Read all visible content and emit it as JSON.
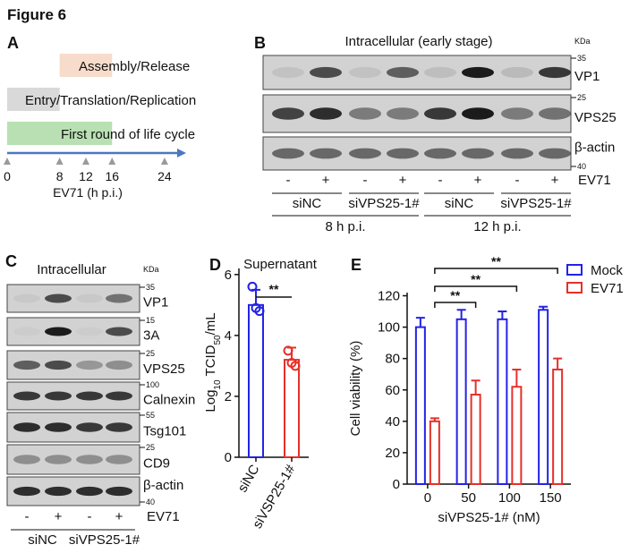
{
  "figure_title": "Figure 6",
  "panel_a": {
    "label": "A",
    "phases": [
      {
        "text": "Assembly/Release",
        "start": 8,
        "end": 16,
        "color": "#f8dccb"
      },
      {
        "text": "Entry/Translation/Replication",
        "start": 0,
        "end": 8,
        "color": "#d9d9d9"
      },
      {
        "text": "First round of life cycle",
        "start": 0,
        "end": 16,
        "color": "#b9e0b2"
      }
    ],
    "ticks": [
      0,
      8,
      12,
      16,
      24
    ],
    "axis_label": "EV71 (h p.i.)"
  },
  "panel_b": {
    "label": "B",
    "title": "Intracellular (early stage)",
    "unit": "KDa",
    "rows": [
      {
        "name": "VP1",
        "marker": "35"
      },
      {
        "name": "VPS25",
        "marker": "25"
      },
      {
        "name": "β-actin",
        "marker": "40"
      }
    ],
    "lanes": [
      "-",
      "+",
      "-",
      "+",
      "-",
      "+",
      "-",
      "+"
    ],
    "treatment": "EV71",
    "groups": [
      "siNC",
      "siVPS25-1#",
      "siNC",
      "siVPS25-1#"
    ],
    "times": [
      "8 h p.i.",
      "12 h p.i."
    ]
  },
  "panel_c": {
    "label": "C",
    "title": "Intracellular",
    "unit": "KDa",
    "rows": [
      {
        "name": "VP1",
        "marker": "35"
      },
      {
        "name": "3A",
        "marker": "15"
      },
      {
        "name": "VPS25",
        "marker": "25"
      },
      {
        "name": "Calnexin",
        "marker": "100"
      },
      {
        "name": "Tsg101",
        "marker": "55"
      },
      {
        "name": "CD9",
        "marker": "25"
      },
      {
        "name": "β-actin",
        "marker": "40"
      }
    ],
    "lanes": [
      "-",
      "+",
      "-",
      "+"
    ],
    "treatment": "EV71",
    "groups": [
      "siNC",
      "siVPS25-1#"
    ]
  },
  "chart_data": [
    {
      "panel": "D",
      "type": "bar",
      "title": "Supernatant",
      "y_label": [
        "Log",
        "10",
        " TCID",
        "50",
        "/mL"
      ],
      "categories": [
        "siNC",
        "siVSP25-1#"
      ],
      "colors": [
        "#2323e6",
        "#e6302a"
      ],
      "values": [
        5.0,
        3.2
      ],
      "errors": [
        0.5,
        0.4
      ],
      "points": [
        [
          5.6,
          4.9,
          4.8
        ],
        [
          3.5,
          3.1,
          3.0
        ]
      ],
      "ylim": [
        0,
        6.2
      ],
      "yticks": [
        0,
        2,
        4,
        6
      ],
      "significance": "**"
    },
    {
      "panel": "E",
      "type": "grouped_bar",
      "y_label": "Cell viability (%)",
      "x_label": "siVPS25-1# (nM)",
      "categories": [
        "0",
        "50",
        "100",
        "150"
      ],
      "series": [
        {
          "name": "Mock",
          "color": "#2323e6",
          "values": [
            100,
            105,
            105,
            111
          ],
          "errors": [
            6,
            6,
            5,
            2
          ]
        },
        {
          "name": "EV71",
          "color": "#e6302a",
          "values": [
            40,
            57,
            62,
            73
          ],
          "errors": [
            2,
            9,
            11,
            7
          ]
        }
      ],
      "ylim": [
        0,
        122
      ],
      "yticks": [
        0,
        20,
        40,
        60,
        80,
        100,
        120
      ],
      "legend": "top-right",
      "significance": [
        "**",
        "**",
        "**"
      ]
    }
  ]
}
